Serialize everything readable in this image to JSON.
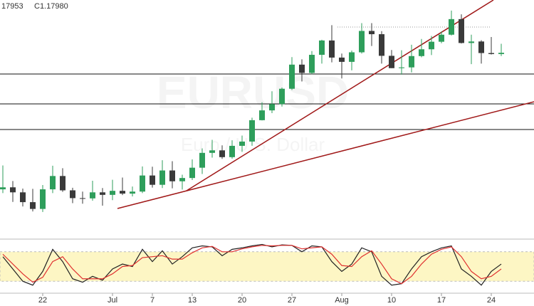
{
  "chart_data": {
    "type": "candlestick",
    "header": [
      "17953",
      "C1.17980"
    ],
    "watermark": [
      "EURUSD",
      "Euro / U.S. Dollar"
    ],
    "categories": [
      null,
      null,
      null,
      null,
      "22",
      null,
      null,
      null,
      null,
      null,
      null,
      "Jul",
      null,
      null,
      null,
      "7",
      null,
      null,
      null,
      "13",
      null,
      null,
      null,
      null,
      "20",
      null,
      null,
      null,
      null,
      "27",
      null,
      null,
      null,
      null,
      "Aug",
      null,
      null,
      null,
      null,
      "10",
      null,
      null,
      null,
      null,
      "17",
      null,
      null,
      null,
      null,
      "24",
      null
    ],
    "open": [
      1.1255,
      1.1263,
      1.1243,
      1.1204,
      1.1177,
      1.1255,
      1.1308,
      1.1251,
      1.122,
      1.1219,
      1.1243,
      1.1233,
      1.1249,
      1.1238,
      1.1246,
      1.131,
      1.1273,
      1.133,
      1.1287,
      1.13,
      1.1341,
      1.14,
      1.141,
      1.1383,
      1.1428,
      1.1445,
      1.153,
      1.1569,
      1.1594,
      1.1655,
      1.1751,
      1.1718,
      1.179,
      1.1847,
      1.1779,
      1.1762,
      1.18,
      1.1885,
      1.1872,
      1.1786,
      1.1737,
      1.174,
      1.1785,
      1.1812,
      1.1842,
      1.187,
      1.1932,
      1.1837,
      1.1843,
      1.1797,
      1.1793
    ],
    "high": [
      1.135,
      1.1288,
      1.1258,
      1.1257,
      1.1272,
      1.1349,
      1.1339,
      1.1261,
      1.1246,
      1.1289,
      1.126,
      1.1293,
      1.1302,
      1.1266,
      1.1346,
      1.1345,
      1.1371,
      1.1367,
      1.1313,
      1.1374,
      1.1418,
      1.1452,
      1.143,
      1.145,
      1.1469,
      1.154,
      1.1601,
      1.1645,
      1.166,
      1.1781,
      1.1772,
      1.1805,
      1.185,
      1.1908,
      1.1795,
      1.1807,
      1.1916,
      1.1916,
      1.1884,
      1.1809,
      1.1808,
      1.183,
      1.1853,
      1.1865,
      1.1883,
      1.1966,
      1.1951,
      1.187,
      1.1848,
      1.1861,
      1.1834
    ],
    "low": [
      1.124,
      1.1205,
      1.1187,
      1.1167,
      1.1165,
      1.124,
      1.1245,
      1.12,
      1.1198,
      1.121,
      1.119,
      1.1212,
      1.1232,
      1.1227,
      1.124,
      1.1262,
      1.126,
      1.1259,
      1.1254,
      1.1292,
      1.1316,
      1.1381,
      1.1376,
      1.1377,
      1.1404,
      1.1428,
      1.1529,
      1.1558,
      1.1584,
      1.165,
      1.1684,
      1.1713,
      1.1755,
      1.176,
      1.1696,
      1.1728,
      1.1795,
      1.1825,
      1.1755,
      1.1737,
      1.1711,
      1.172,
      1.178,
      1.1789,
      1.1836,
      1.1867,
      1.1835,
      1.1753,
      1.1755,
      1.1791,
      1.1785
    ],
    "close": [
      1.1263,
      1.1243,
      1.1204,
      1.1177,
      1.1255,
      1.1308,
      1.1251,
      1.122,
      1.1219,
      1.1243,
      1.1233,
      1.1249,
      1.1238,
      1.1246,
      1.131,
      1.1273,
      1.133,
      1.1287,
      1.13,
      1.1341,
      1.14,
      1.141,
      1.1383,
      1.1428,
      1.1445,
      1.153,
      1.1569,
      1.1594,
      1.1655,
      1.1751,
      1.1718,
      1.179,
      1.1847,
      1.1779,
      1.1762,
      1.18,
      1.1885,
      1.1872,
      1.1786,
      1.1737,
      1.174,
      1.1785,
      1.1812,
      1.1842,
      1.187,
      1.1932,
      1.1837,
      1.1843,
      1.1797,
      1.1793,
      1.1798
    ],
    "up_color": "#2e9e5b",
    "down_color": "#3a3a3a",
    "ylim": [
      1.1074,
      1.2008
    ],
    "stochastic": {
      "ylim": [
        0,
        100
      ],
      "band": [
        20,
        80
      ],
      "band_color": "#fdf6c4",
      "k": {
        "color": "#222222",
        "values": [
          70,
          45,
          20,
          12,
          40,
          85,
          60,
          25,
          18,
          30,
          22,
          45,
          55,
          50,
          85,
          60,
          82,
          55,
          70,
          88,
          92,
          90,
          72,
          85,
          88,
          92,
          95,
          90,
          94,
          93,
          80,
          92,
          90,
          60,
          40,
          55,
          88,
          80,
          30,
          12,
          15,
          45,
          70,
          80,
          88,
          92,
          45,
          30,
          12,
          40,
          55
        ]
      },
      "d": {
        "color": "#e0302f",
        "values": [
          75,
          55,
          35,
          18,
          28,
          60,
          70,
          45,
          25,
          25,
          25,
          35,
          50,
          52,
          68,
          70,
          72,
          65,
          65,
          78,
          88,
          91,
          80,
          80,
          86,
          90,
          93,
          92,
          93,
          93,
          86,
          88,
          90,
          75,
          52,
          50,
          70,
          82,
          55,
          25,
          15,
          30,
          55,
          75,
          85,
          90,
          70,
          40,
          25,
          30,
          45
        ]
      }
    }
  }
}
